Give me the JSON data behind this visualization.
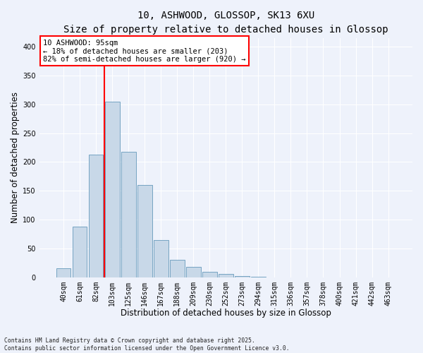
{
  "title_line1": "10, ASHWOOD, GLOSSOP, SK13 6XU",
  "title_line2": "Size of property relative to detached houses in Glossop",
  "xlabel": "Distribution of detached houses by size in Glossop",
  "ylabel": "Number of detached properties",
  "footer": "Contains HM Land Registry data © Crown copyright and database right 2025.\nContains public sector information licensed under the Open Government Licence v3.0.",
  "bin_labels": [
    "40sqm",
    "61sqm",
    "82sqm",
    "103sqm",
    "125sqm",
    "146sqm",
    "167sqm",
    "188sqm",
    "209sqm",
    "230sqm",
    "252sqm",
    "273sqm",
    "294sqm",
    "315sqm",
    "336sqm",
    "357sqm",
    "378sqm",
    "400sqm",
    "421sqm",
    "442sqm",
    "463sqm"
  ],
  "bar_values": [
    15,
    88,
    213,
    305,
    218,
    160,
    65,
    30,
    18,
    10,
    6,
    2,
    1,
    0,
    0,
    0,
    0,
    0,
    0,
    0,
    0
  ],
  "bar_color": "#c8d8e8",
  "bar_edgecolor": "#6699bb",
  "vline_x": 2.5,
  "vline_color": "red",
  "annotation_text": "10 ASHWOOD: 95sqm\n← 18% of detached houses are smaller (203)\n82% of semi-detached houses are larger (920) →",
  "annotation_box_color": "white",
  "annotation_box_edgecolor": "red",
  "ylim": [
    0,
    415
  ],
  "yticks": [
    0,
    50,
    100,
    150,
    200,
    250,
    300,
    350,
    400
  ],
  "bg_color": "#eef2fb",
  "grid_color": "white",
  "title_fontsize": 10,
  "axis_label_fontsize": 8.5,
  "tick_fontsize": 7
}
